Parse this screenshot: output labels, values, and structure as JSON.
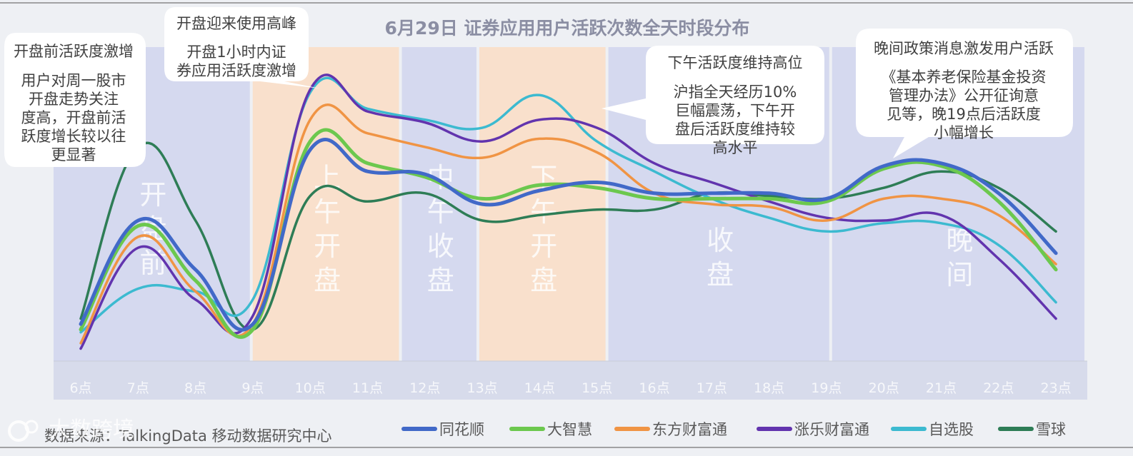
{
  "chart_data": {
    "type": "line",
    "title": "6月29日 证券应用用户活跃次数全天时段分布",
    "categories": [
      "6点",
      "7点",
      "8点",
      "9点",
      "10点",
      "11点",
      "12点",
      "13点",
      "14点",
      "15点",
      "16点",
      "17点",
      "18点",
      "19点",
      "20点",
      "21点",
      "22点",
      "23点"
    ],
    "ylim": [
      0,
      100
    ],
    "grid": false,
    "legend_position": "bottom",
    "series": [
      {
        "name": "同花顺",
        "color": "#4169c8",
        "values": [
          12,
          50,
          32,
          12,
          76,
          68,
          67,
          56,
          61,
          64,
          60,
          60,
          60,
          58,
          70,
          71,
          60,
          38
        ]
      },
      {
        "name": "大智慧",
        "color": "#6cc84e",
        "values": [
          10,
          48,
          28,
          10,
          79,
          71,
          66,
          58,
          63,
          62,
          58,
          58,
          58,
          57,
          69,
          70,
          57,
          32
        ]
      },
      {
        "name": "东方财富通",
        "color": "#f09444",
        "values": [
          5,
          44,
          24,
          12,
          87,
          82,
          77,
          73,
          80,
          75,
          60,
          56,
          55,
          50,
          58,
          58,
          52,
          34
        ]
      },
      {
        "name": "涨乐财富通",
        "color": "#6234ae",
        "values": [
          3,
          40,
          21,
          15,
          98,
          90,
          86,
          79,
          87,
          84,
          71,
          64,
          57,
          51,
          50,
          52,
          36,
          14
        ]
      },
      {
        "name": "自选股",
        "color": "#3cbad0",
        "values": [
          9,
          25,
          24,
          21,
          97,
          91,
          87,
          84,
          96,
          79,
          68,
          58,
          51,
          46,
          49,
          49,
          41,
          20
        ]
      },
      {
        "name": "雪球",
        "color": "#2e7d56",
        "values": [
          14,
          77,
          50,
          10,
          59,
          57,
          60,
          50,
          52,
          54,
          54,
          60,
          59,
          58,
          62,
          68,
          62,
          46
        ]
      }
    ],
    "bands": [
      {
        "label": "开盘前",
        "from": 6,
        "to": 9,
        "color": "#d5d9ef"
      },
      {
        "label": "上午开盘",
        "from": 9,
        "to": 11.6,
        "color": "#f9e0cc"
      },
      {
        "label": "中午收盘",
        "from": 11.6,
        "to": 12.95,
        "color": "#d5d9ef"
      },
      {
        "label": "下午开盘",
        "from": 12.95,
        "to": 15.2,
        "color": "#f9e0cc"
      },
      {
        "label": "收盘",
        "from": 15.2,
        "to": 19.1,
        "color": "#d5d9ef"
      },
      {
        "label": "晚间",
        "from": 19.1,
        "to": 24.1,
        "color": "#d5d9ef"
      }
    ],
    "annotations": [
      {
        "title": "开盘前活跃度激增",
        "lines": [
          "用户对周一股市",
          "开盘走势关注",
          "度高，开盘前活",
          "跃度增长较以往",
          "更显著"
        ]
      },
      {
        "title": "开盘迎来使用高峰",
        "lines": [
          "开盘1小时内证",
          "券应用活跃度激增"
        ]
      },
      {
        "title": "下午活跃度维持高位",
        "lines": [
          "沪指全天经历10%",
          "巨幅震荡，下午开",
          "盘后活跃度维持较",
          "高水平"
        ]
      },
      {
        "title": "晚间政策消息激发用户活跃",
        "lines": [
          "《基本养老保险基金投资",
          "管理办法》公开征询意",
          "见等，晚19点后活跃度",
          "小幅增长"
        ]
      }
    ]
  },
  "source_text": "数据来源：TalkingData 移动数据研究中心",
  "watermark_text": "大数跨境"
}
